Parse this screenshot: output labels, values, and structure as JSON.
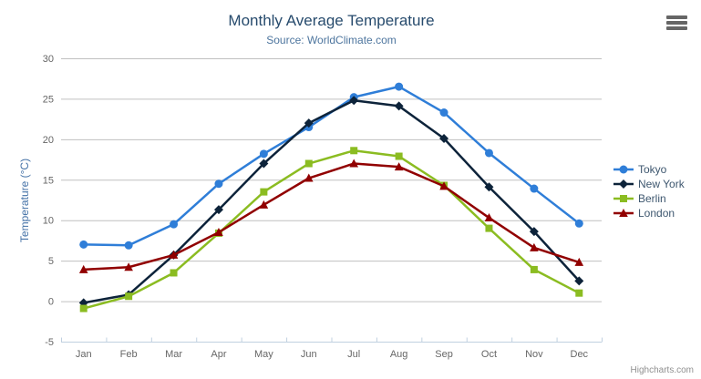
{
  "chart_data": {
    "type": "line",
    "title": "Monthly Average Temperature",
    "subtitle": "Source: WorldClimate.com",
    "categories": [
      "Jan",
      "Feb",
      "Mar",
      "Apr",
      "May",
      "Jun",
      "Jul",
      "Aug",
      "Sep",
      "Oct",
      "Nov",
      "Dec"
    ],
    "xlabel": "",
    "ylabel": "Temperature (°C)",
    "ylim": [
      -5,
      30
    ],
    "yticks": [
      -5,
      0,
      5,
      10,
      15,
      20,
      25,
      30
    ],
    "grid": true,
    "legend_position": "right",
    "series": [
      {
        "name": "Tokyo",
        "color": "#2f7ed8",
        "marker": "circle",
        "values": [
          7.0,
          6.9,
          9.5,
          14.5,
          18.2,
          21.5,
          25.2,
          26.5,
          23.3,
          18.3,
          13.9,
          9.6
        ]
      },
      {
        "name": "New York",
        "color": "#0d233a",
        "marker": "diamond",
        "values": [
          -0.2,
          0.8,
          5.7,
          11.3,
          17.0,
          22.0,
          24.8,
          24.1,
          20.1,
          14.1,
          8.6,
          2.5
        ]
      },
      {
        "name": "Berlin",
        "color": "#8bbc21",
        "marker": "square",
        "values": [
          -0.9,
          0.6,
          3.5,
          8.4,
          13.5,
          17.0,
          18.6,
          17.9,
          14.3,
          9.0,
          3.9,
          1.0
        ]
      },
      {
        "name": "London",
        "color": "#910000",
        "marker": "triangle",
        "values": [
          3.9,
          4.2,
          5.7,
          8.5,
          11.9,
          15.2,
          17.0,
          16.6,
          14.2,
          10.3,
          6.6,
          4.8
        ]
      }
    ],
    "credits": "Highcharts.com",
    "colors": {
      "title": "#274b6d",
      "subtitle": "#4d759e",
      "axis_title": "#4572a7",
      "tick_label": "#666666",
      "gridline": "#c0c0c0",
      "axis_line": "#c0d0e0",
      "legend_text": "#3e576f",
      "credits_text": "#909090",
      "menu_icon": "#666666"
    },
    "icons": {
      "export_menu": "hamburger-icon"
    }
  }
}
